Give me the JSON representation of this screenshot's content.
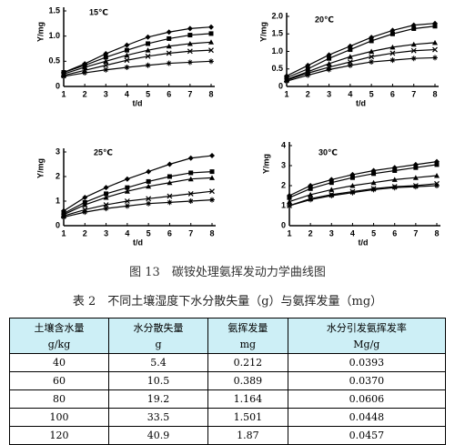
{
  "chart_data": [
    {
      "type": "line",
      "title": "15℃",
      "ylabel": "Y/mg",
      "xlabel": "t/d",
      "x": [
        1,
        2,
        3,
        4,
        5,
        6,
        7,
        8
      ],
      "xlim": [
        1,
        8
      ],
      "xticks": [
        1,
        2,
        3,
        4,
        5,
        6,
        7,
        8
      ],
      "ylim": [
        0,
        1.5
      ],
      "yticks": [
        0,
        0.5,
        {
          "value": 1,
          "label": "1.0"
        },
        1.5
      ],
      "series": [
        {
          "color": "#000",
          "values": [
            0.28,
            0.45,
            0.65,
            0.82,
            0.98,
            1.08,
            1.15,
            1.18
          ]
        },
        {
          "color": "#000",
          "values": [
            0.28,
            0.42,
            0.58,
            0.72,
            0.85,
            0.95,
            1.02,
            1.05
          ]
        },
        {
          "color": "#000",
          "values": [
            0.25,
            0.38,
            0.5,
            0.62,
            0.72,
            0.8,
            0.85,
            0.88
          ]
        },
        {
          "color": "#000",
          "values": [
            0.22,
            0.32,
            0.42,
            0.52,
            0.6,
            0.66,
            0.7,
            0.72
          ]
        },
        {
          "color": "#000",
          "values": [
            0.2,
            0.27,
            0.33,
            0.38,
            0.42,
            0.46,
            0.48,
            0.5
          ]
        }
      ]
    },
    {
      "type": "line",
      "title": "20℃",
      "ylabel": "Y/mg",
      "xlabel": "t/d",
      "x": [
        1,
        2,
        3,
        4,
        5,
        6,
        7,
        8
      ],
      "xlim": [
        1,
        8
      ],
      "xticks": [
        1,
        2,
        3,
        4,
        5,
        6,
        7,
        8
      ],
      "ylim": [
        0,
        2
      ],
      "yticks": [
        0,
        0.5,
        {
          "value": 1,
          "label": "1.0"
        },
        1.5,
        {
          "value": 2,
          "label": "2.0"
        }
      ],
      "series": [
        {
          "color": "#000",
          "values": [
            0.3,
            0.6,
            0.9,
            1.15,
            1.4,
            1.6,
            1.75,
            1.8
          ]
        },
        {
          "color": "#000",
          "values": [
            0.25,
            0.5,
            0.8,
            1.05,
            1.3,
            1.5,
            1.65,
            1.72
          ]
        },
        {
          "color": "#000",
          "values": [
            0.2,
            0.42,
            0.65,
            0.85,
            1.0,
            1.12,
            1.2,
            1.25
          ]
        },
        {
          "color": "#000",
          "values": [
            0.18,
            0.38,
            0.55,
            0.7,
            0.85,
            0.95,
            1.02,
            1.05
          ]
        },
        {
          "color": "#000",
          "values": [
            0.15,
            0.32,
            0.48,
            0.6,
            0.7,
            0.75,
            0.8,
            0.82
          ]
        }
      ]
    },
    {
      "type": "line",
      "title": "25℃",
      "ylabel": "Y/mg",
      "xlabel": "t/d",
      "x": [
        1,
        2,
        3,
        4,
        5,
        6,
        7,
        8
      ],
      "xlim": [
        1,
        8
      ],
      "xticks": [
        1,
        2,
        3,
        4,
        5,
        6,
        7,
        8
      ],
      "ylim": [
        0,
        3
      ],
      "yticks": [
        0,
        1,
        2,
        3
      ],
      "series": [
        {
          "color": "#000",
          "values": [
            0.6,
            1.15,
            1.55,
            1.9,
            2.2,
            2.5,
            2.75,
            2.85
          ]
        },
        {
          "color": "#000",
          "values": [
            0.5,
            0.95,
            1.3,
            1.55,
            1.8,
            2.0,
            2.15,
            2.2
          ]
        },
        {
          "color": "#000",
          "values": [
            0.45,
            0.85,
            1.15,
            1.4,
            1.6,
            1.75,
            1.9,
            1.95
          ]
        },
        {
          "color": "#000",
          "values": [
            0.4,
            0.65,
            0.85,
            1.0,
            1.1,
            1.2,
            1.3,
            1.4
          ]
        },
        {
          "color": "#000",
          "values": [
            0.35,
            0.55,
            0.7,
            0.8,
            0.9,
            0.95,
            1.0,
            1.05
          ]
        }
      ]
    },
    {
      "type": "line",
      "title": "30℃",
      "ylabel": "Y/mg",
      "xlabel": "t/d",
      "x": [
        1,
        2,
        3,
        4,
        5,
        6,
        7,
        8
      ],
      "xlim": [
        1,
        8
      ],
      "xticks": [
        1,
        2,
        3,
        4,
        5,
        6,
        7,
        8
      ],
      "ylim": [
        0,
        4
      ],
      "yticks": [
        0,
        1,
        2,
        3,
        4
      ],
      "series": [
        {
          "color": "#000",
          "values": [
            1.5,
            2.0,
            2.3,
            2.55,
            2.75,
            2.9,
            3.05,
            3.2
          ]
        },
        {
          "color": "#000",
          "values": [
            1.4,
            1.85,
            2.15,
            2.4,
            2.6,
            2.75,
            2.9,
            3.05
          ]
        },
        {
          "color": "#000",
          "values": [
            1.2,
            1.55,
            1.8,
            2.0,
            2.15,
            2.3,
            2.4,
            2.5
          ]
        },
        {
          "color": "#000",
          "values": [
            1.0,
            1.35,
            1.55,
            1.7,
            1.85,
            1.95,
            2.0,
            2.1
          ]
        },
        {
          "color": "#000",
          "values": [
            1.0,
            1.3,
            1.5,
            1.65,
            1.8,
            1.9,
            1.95,
            2.0
          ]
        }
      ]
    }
  ],
  "figure_caption": "图 13　碳铵处理氨挥发动力学曲线图",
  "table": {
    "caption": "表 2　不同土壤湿度下水分散失量（g）与氨挥发量（mg）",
    "header": [
      [
        "土壤含水量",
        "g/kg"
      ],
      [
        "水分散失量",
        "g"
      ],
      [
        "氨挥发量",
        "mg"
      ],
      [
        "水分引发氨挥发率",
        "Mg/g"
      ]
    ],
    "rows": [
      [
        "40",
        "5.4",
        "0.212",
        "0.0393"
      ],
      [
        "60",
        "10.5",
        "0.389",
        "0.0370"
      ],
      [
        "80",
        "19.2",
        "1.164",
        "0.0606"
      ],
      [
        "100",
        "33.5",
        "1.501",
        "0.0448"
      ],
      [
        "120",
        "40.9",
        "1.87",
        "0.0457"
      ]
    ]
  }
}
